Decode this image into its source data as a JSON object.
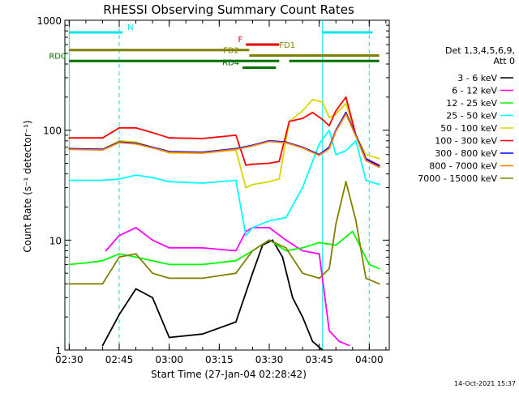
{
  "chart_data": {
    "type": "line",
    "title": "RHESSI Observing Summary Count Rates",
    "xlabel": "Start Time (27-Jan-04 02:28:42)",
    "ylabel": "Count Rate (s⁻¹ detector⁻¹)",
    "x_ticks": [
      "02:30",
      "02:45",
      "03:00",
      "03:15",
      "03:30",
      "03:45",
      "04:00"
    ],
    "y_ticks": [
      "1",
      "10",
      "100",
      "1000"
    ],
    "xlim": [
      "02:28:42",
      "04:06:00"
    ],
    "ylim": [
      1,
      1000
    ],
    "yscale": "log",
    "legend_title_lines": [
      "Det 1,3,4,5,6,9,",
      "Att 0"
    ],
    "footer_date": "14-Oct-2021 15:37",
    "state_bars": [
      {
        "label": "N",
        "color": "#00e5e5",
        "level": 2,
        "segments": [
          [
            "02:30",
            "02:46"
          ],
          [
            "03:46",
            "04:01"
          ]
        ]
      },
      {
        "label": "F",
        "color": "#e00000",
        "level": 1,
        "segments": [
          [
            "03:23",
            "03:33"
          ]
        ]
      },
      {
        "label": "FD1",
        "color": "#808000",
        "level": 0.55,
        "segments": [
          [
            "02:30",
            "03:24"
          ]
        ]
      },
      {
        "label": "FD2",
        "color": "#808000",
        "level": 0.1,
        "segments": [
          [
            "03:24",
            "04:03"
          ]
        ]
      },
      {
        "label": "RD0",
        "color": "#007000",
        "level": -0.35,
        "segments": [
          [
            "02:30",
            "03:33"
          ],
          [
            "03:36",
            "04:03"
          ]
        ]
      },
      {
        "label": "RD4",
        "color": "#007000",
        "level": -0.9,
        "segments": [
          [
            "03:22",
            "03:32"
          ]
        ]
      }
    ],
    "vertical_markers": [
      "02:45",
      "04:00"
    ],
    "series": [
      {
        "name": "3 - 6 keV",
        "color": "#000000",
        "x": [
          "02:40",
          "02:45",
          "02:50",
          "02:55",
          "03:00",
          "03:10",
          "03:20",
          "03:25",
          "03:28",
          "03:31",
          "03:34",
          "03:37",
          "03:40",
          "03:43",
          "03:46"
        ],
        "y": [
          1.1,
          2.1,
          3.6,
          3.0,
          1.3,
          1.4,
          1.8,
          5.0,
          9.0,
          10.0,
          7.0,
          3.0,
          2.0,
          1.2,
          1.0
        ]
      },
      {
        "name": "6 - 12 keV",
        "color": "#ff00ff",
        "x": [
          "02:41",
          "02:45",
          "02:50",
          "02:55",
          "03:00",
          "03:10",
          "03:20",
          "03:23",
          "03:25",
          "03:30",
          "03:35",
          "03:40",
          "03:45",
          "03:48",
          "03:51",
          "03:54"
        ],
        "y": [
          8.0,
          11.0,
          13.0,
          10.0,
          8.5,
          8.5,
          8.0,
          12.0,
          13.0,
          13.0,
          10.0,
          8.0,
          7.5,
          1.5,
          1.2,
          1.1
        ]
      },
      {
        "name": "12 - 25 keV",
        "color": "#00ff00",
        "x": [
          "02:30",
          "02:35",
          "02:40",
          "02:45",
          "02:50",
          "03:00",
          "03:10",
          "03:20",
          "03:25",
          "03:30",
          "03:35",
          "03:40",
          "03:45",
          "03:50",
          "03:55",
          "04:00",
          "04:03"
        ],
        "y": [
          6.0,
          6.2,
          6.5,
          7.5,
          7.0,
          6.0,
          6.0,
          6.5,
          8.0,
          10.0,
          8.0,
          8.5,
          9.5,
          9.0,
          12.0,
          6.0,
          5.5
        ]
      },
      {
        "name": "25 - 50 keV",
        "color": "#00ffff",
        "x": [
          "02:30",
          "02:40",
          "02:45",
          "02:50",
          "02:55",
          "03:00",
          "03:10",
          "03:20",
          "03:23",
          "03:25",
          "03:30",
          "03:35",
          "03:40",
          "03:45",
          "03:48",
          "03:50",
          "03:53",
          "03:56",
          "03:59",
          "04:03"
        ],
        "y": [
          35,
          35,
          36,
          39,
          37,
          34,
          33,
          35,
          11,
          13,
          15,
          16,
          30,
          75,
          100,
          60,
          65,
          80,
          35,
          32
        ]
      },
      {
        "name": "50 - 100 keV",
        "color": "#d8d800",
        "x": [
          "02:30",
          "02:40",
          "02:45",
          "02:50",
          "02:55",
          "03:00",
          "03:10",
          "03:20",
          "03:23",
          "03:25",
          "03:30",
          "03:33",
          "03:36",
          "03:40",
          "03:43",
          "03:46",
          "03:48",
          "03:50",
          "03:53",
          "03:56",
          "03:59",
          "04:03"
        ],
        "y": [
          67,
          67,
          80,
          78,
          70,
          62,
          62,
          66,
          30,
          32,
          34,
          36,
          120,
          150,
          190,
          180,
          130,
          140,
          175,
          90,
          60,
          55
        ]
      },
      {
        "name": "100 - 300 keV",
        "color": "#ff0000",
        "x": [
          "02:30",
          "02:40",
          "02:45",
          "02:50",
          "02:55",
          "03:00",
          "03:10",
          "03:20",
          "03:23",
          "03:25",
          "03:30",
          "03:33",
          "03:36",
          "03:40",
          "03:43",
          "03:46",
          "03:48",
          "03:50",
          "03:53",
          "03:56",
          "03:59",
          "04:03"
        ],
        "y": [
          85,
          85,
          105,
          105,
          95,
          85,
          84,
          90,
          48,
          49,
          50,
          52,
          120,
          128,
          145,
          125,
          110,
          150,
          200,
          90,
          55,
          48
        ]
      },
      {
        "name": "300 - 800 keV",
        "color": "#0000ff",
        "x": [
          "02:30",
          "02:40",
          "02:45",
          "02:50",
          "02:55",
          "03:00",
          "03:10",
          "03:20",
          "03:25",
          "03:30",
          "03:35",
          "03:40",
          "03:45",
          "03:48",
          "03:50",
          "03:53",
          "03:56",
          "03:59",
          "04:03"
        ],
        "y": [
          68,
          67,
          78,
          76,
          70,
          64,
          63,
          68,
          73,
          80,
          78,
          70,
          60,
          70,
          100,
          145,
          90,
          55,
          47
        ]
      },
      {
        "name": "800 - 7000 keV",
        "color": "#ff8000",
        "x": [
          "02:30",
          "02:40",
          "02:45",
          "02:50",
          "02:55",
          "03:00",
          "03:10",
          "03:20",
          "03:25",
          "03:30",
          "03:35",
          "03:40",
          "03:45",
          "03:48",
          "03:50",
          "03:53",
          "03:56",
          "03:59",
          "04:03"
        ],
        "y": [
          67,
          66,
          77,
          75,
          69,
          63,
          62,
          67,
          72,
          79,
          77,
          69,
          59,
          68,
          98,
          140,
          88,
          53,
          46
        ]
      },
      {
        "name": "7000 - 15000 keV",
        "color": "#808000",
        "x": [
          "02:30",
          "02:40",
          "02:45",
          "02:50",
          "02:55",
          "03:00",
          "03:10",
          "03:20",
          "03:25",
          "03:30",
          "03:35",
          "03:40",
          "03:45",
          "03:48",
          "03:50",
          "03:53",
          "03:56",
          "03:59",
          "04:03"
        ],
        "y": [
          4.0,
          4.0,
          7.0,
          7.5,
          5.0,
          4.5,
          4.5,
          5.0,
          8.0,
          10.0,
          8.5,
          5.0,
          4.5,
          5.5,
          14.0,
          34.0,
          15.0,
          4.5,
          4.0
        ]
      }
    ]
  }
}
